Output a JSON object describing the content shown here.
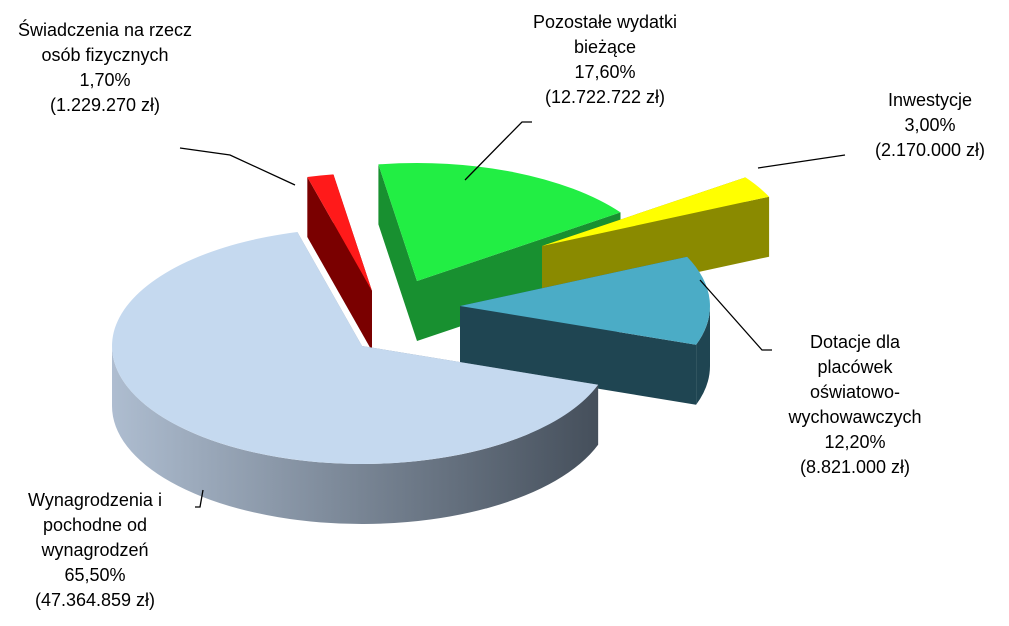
{
  "chart_data": {
    "type": "pie",
    "categories": [
      "Świadczenia na rzecz osób fizycznych",
      "Pozostałe wydatki bieżące",
      "Inwestycje",
      "Dotacje dla placówek oświatowo-wychowawczych",
      "Wynagrodzenia i pochodne od wynagrodzeń"
    ],
    "values": [
      1.7,
      17.6,
      3.0,
      12.2,
      65.5
    ],
    "value_labels": [
      "1,70%",
      "17,60%",
      "3,00%",
      "12,20%",
      "65,50%"
    ],
    "amount_labels": [
      "(1.229.270 zł)",
      "(12.722.722 zł)",
      "(2.170.000 zł)",
      "(8.821.000 zł)",
      "(47.364.859 zł)"
    ],
    "colors": [
      "#ff1a1a",
      "#22ee44",
      "#ffff00",
      "#4bacc6",
      "#c5d9ef"
    ],
    "side_colors": [
      "#7a0000",
      "#189030",
      "#8a8a00",
      "#1f4552",
      "#7d8a9a"
    ]
  }
}
